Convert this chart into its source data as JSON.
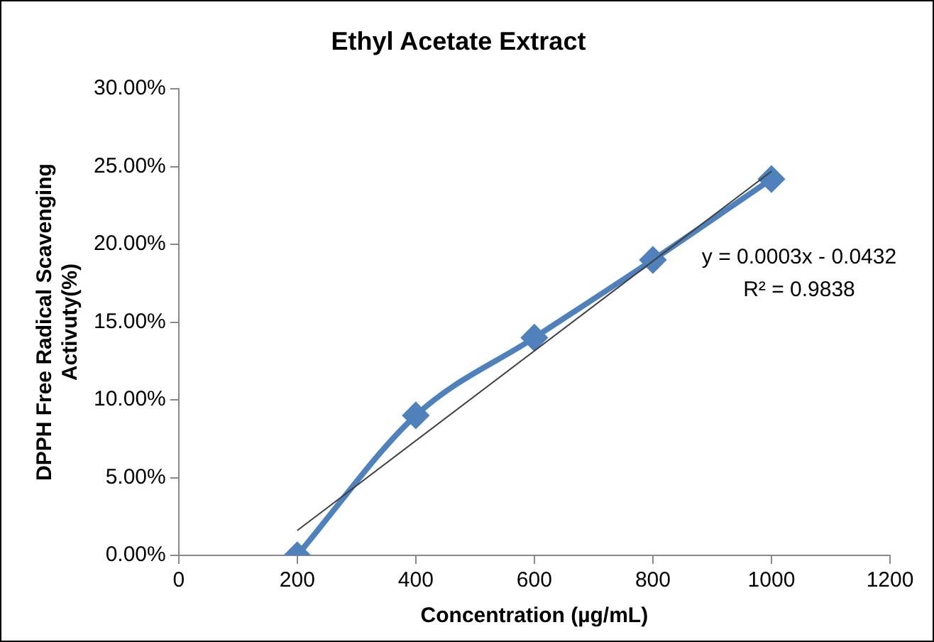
{
  "chart_data": {
    "type": "line",
    "title": "Ethyl Acetate Extract",
    "xlabel": "Concentration (µg/mL)",
    "ylabel": "DPPH Free Radical Scavenging Activuty(%)",
    "xlim": [
      0,
      1200
    ],
    "xticks": [
      0,
      200,
      400,
      600,
      800,
      1000,
      1200
    ],
    "ylim": [
      0,
      0.3
    ],
    "yticks": [
      {
        "value": 0,
        "label": "0.00%"
      },
      {
        "value": 0.05,
        "label": "5.00%"
      },
      {
        "value": 0.1,
        "label": "10.00%"
      },
      {
        "value": 0.15,
        "label": "15.00%"
      },
      {
        "value": 0.2,
        "label": "20.00%"
      },
      {
        "value": 0.25,
        "label": "25.00%"
      },
      {
        "value": 0.3,
        "label": "30.00%"
      }
    ],
    "grid": false,
    "legend": false,
    "series": [
      {
        "color": "#4f81bd",
        "marker": "diamond",
        "x": [
          200,
          400,
          600,
          800,
          1000
        ],
        "values": [
          0,
          0.09,
          0.14,
          0.19,
          0.242
        ]
      },
      {
        "color": "#404040",
        "marker": "none",
        "x": [
          200,
          1000
        ],
        "values": [
          0.016,
          0.247
        ]
      }
    ],
    "annotations": [
      "y = 0.0003x - 0.0432",
      "R² = 0.9838"
    ]
  }
}
